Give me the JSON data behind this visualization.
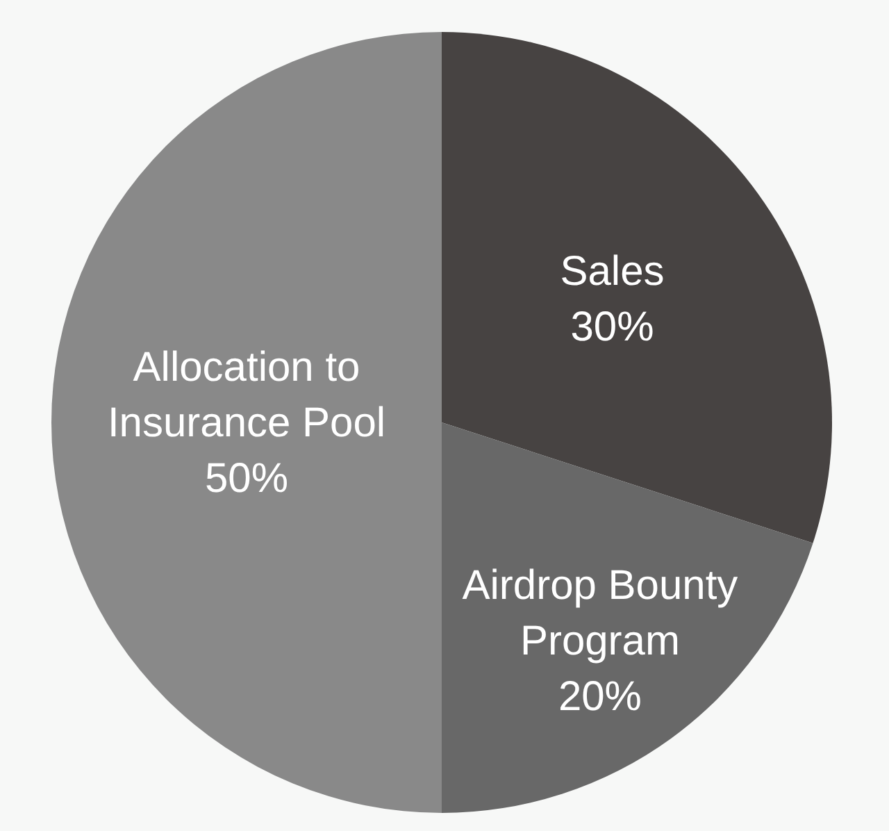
{
  "chart_data": {
    "type": "pie",
    "categories": [
      "Sales",
      "Airdrop Bounty Program",
      "Allocation to Insurance Pool"
    ],
    "values": [
      30,
      20,
      50
    ],
    "colors": [
      "#474342",
      "#686868",
      "#898989"
    ],
    "value_labels": [
      "30%",
      "20%",
      "50%"
    ]
  }
}
